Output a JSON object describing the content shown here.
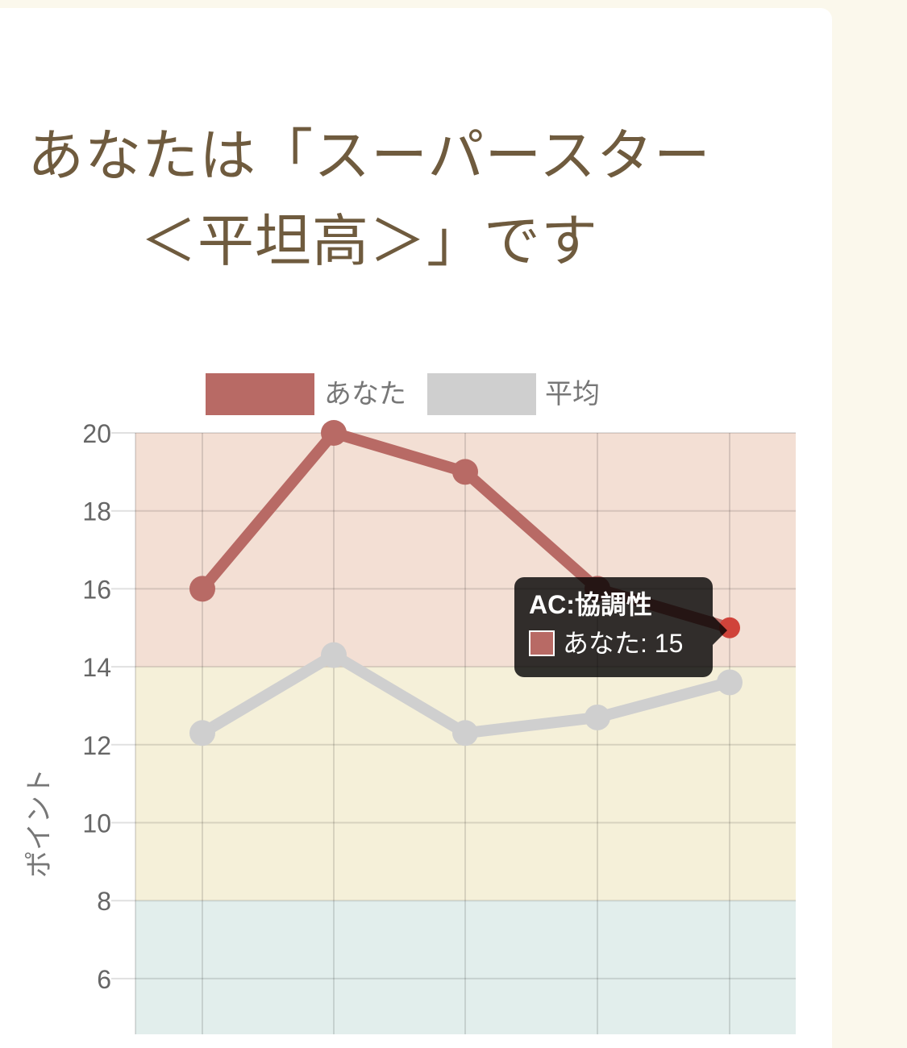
{
  "heading": {
    "line1": "あなたは「スーパースター",
    "line2": "＜平坦高＞」です"
  },
  "colors": {
    "you": "#b86a65",
    "average": "#cfcfcf",
    "band_high": "#f3dfd4",
    "band_mid": "#f5f0d9",
    "band_low": "#e2eeec",
    "tooltip_swatch": "#b86a65",
    "active_point": "#d0433a"
  },
  "chart_data": {
    "type": "line",
    "ylabel": "ポイント",
    "xlabel": "",
    "ylim": [
      4,
      20
    ],
    "y_ticks": [
      "6",
      "8",
      "10",
      "12",
      "14",
      "16",
      "18",
      "20"
    ],
    "grid": true,
    "legend": "top",
    "bands": [
      {
        "from": 14,
        "to": 20,
        "color": "#f3dfd4"
      },
      {
        "from": 8,
        "to": 14,
        "color": "#f5f0d9"
      },
      {
        "from": 4,
        "to": 8,
        "color": "#e2eeec"
      }
    ],
    "series": [
      {
        "name": "あなた",
        "values": [
          16,
          20,
          19,
          16,
          15
        ],
        "color": "#b86a65"
      },
      {
        "name": "平均",
        "values": [
          12.3,
          14.3,
          12.3,
          12.7,
          13.6
        ],
        "color": "#cfcfcf"
      }
    ],
    "tooltip": {
      "title": "AC:協調性",
      "series": "あなた",
      "value": "15"
    }
  }
}
